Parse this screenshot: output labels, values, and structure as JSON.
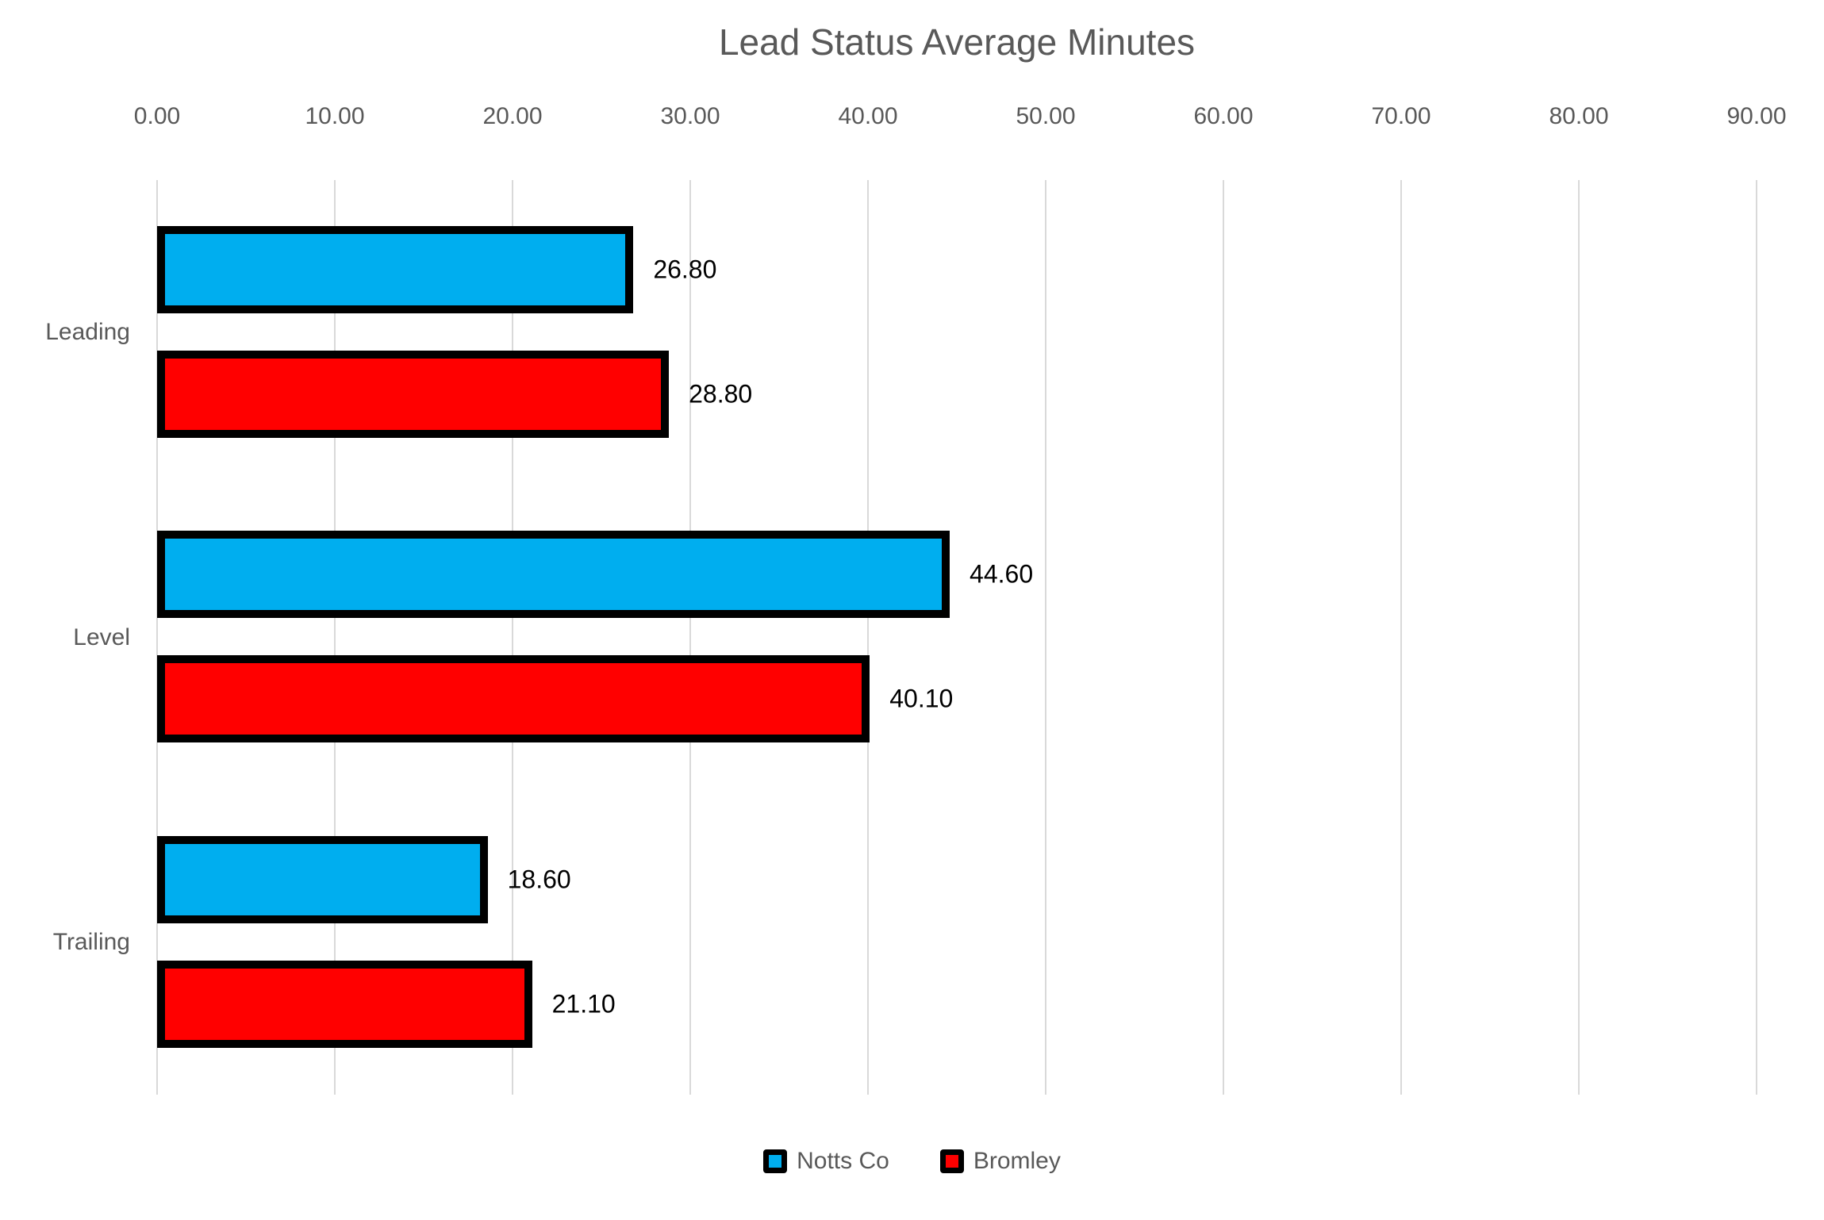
{
  "chart_data": {
    "type": "bar",
    "orientation": "horizontal",
    "title": "Lead Status Average Minutes",
    "categories": [
      "Leading",
      "Level",
      "Trailing"
    ],
    "series": [
      {
        "name": "Notts Co",
        "color": "#00AEEF",
        "values": [
          26.8,
          44.6,
          18.6
        ]
      },
      {
        "name": "Bromley",
        "color": "#FF0000",
        "values": [
          28.8,
          40.1,
          21.1
        ]
      }
    ],
    "value_labels": [
      [
        "26.80",
        "28.80"
      ],
      [
        "44.60",
        "40.10"
      ],
      [
        "18.60",
        "21.10"
      ]
    ],
    "x_ticks": [
      "0.00",
      "10.00",
      "20.00",
      "30.00",
      "40.00",
      "50.00",
      "60.00",
      "70.00",
      "80.00",
      "90.00"
    ],
    "xlim": [
      0,
      90
    ],
    "grid": "vertical-gridlines-on",
    "legend_position": "bottom",
    "colors": {
      "grid": "#D9D9D9",
      "axis_text": "#595959",
      "title_text": "#595959",
      "data_label_text": "#000000",
      "bar_border": "#000000",
      "background": "#FFFFFF"
    }
  }
}
